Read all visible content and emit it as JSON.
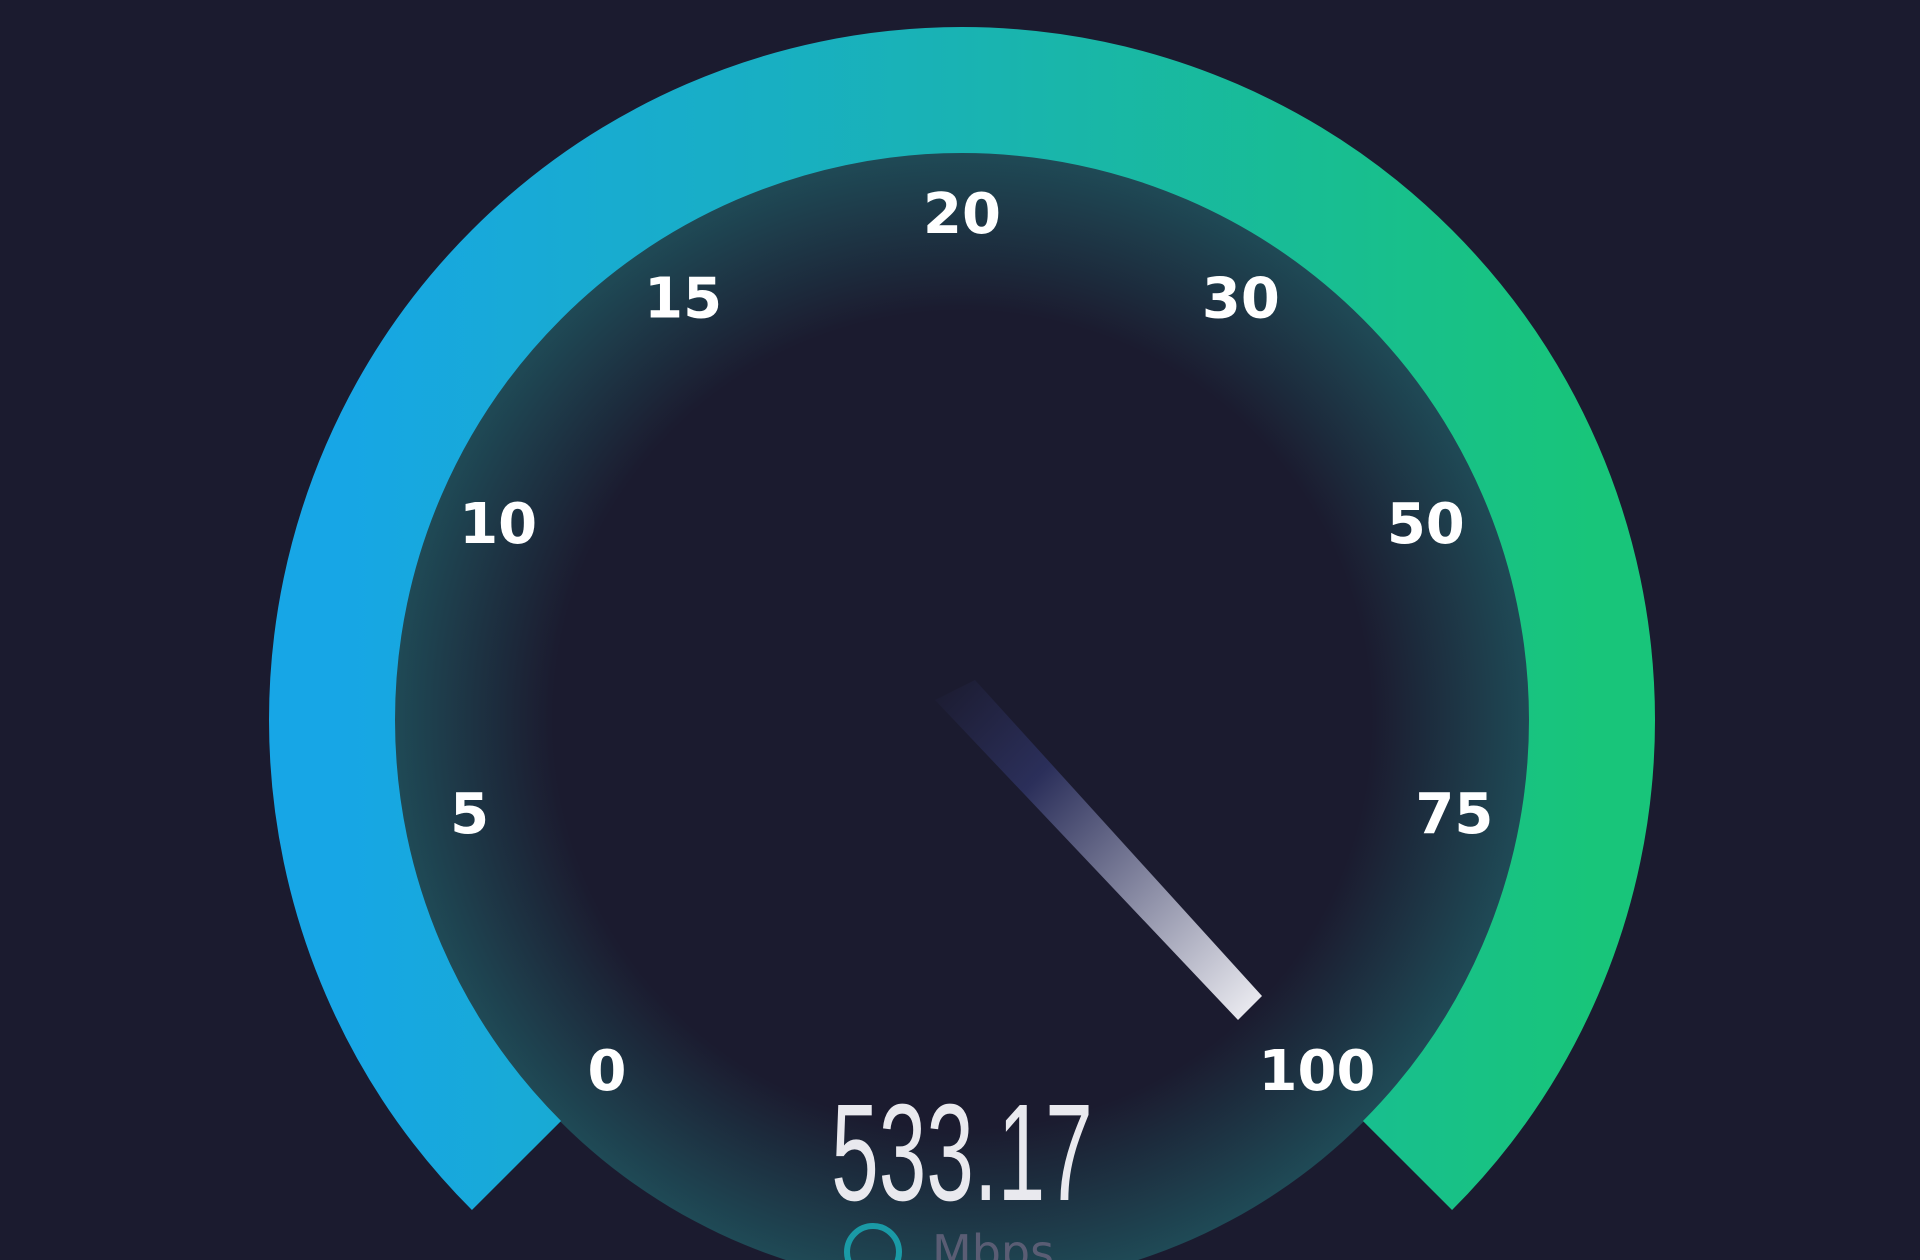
{
  "gauge": {
    "ticks": [
      "0",
      "5",
      "10",
      "15",
      "20",
      "30",
      "50",
      "75",
      "100"
    ],
    "reading": "533.17",
    "unit": "Mbps"
  }
}
